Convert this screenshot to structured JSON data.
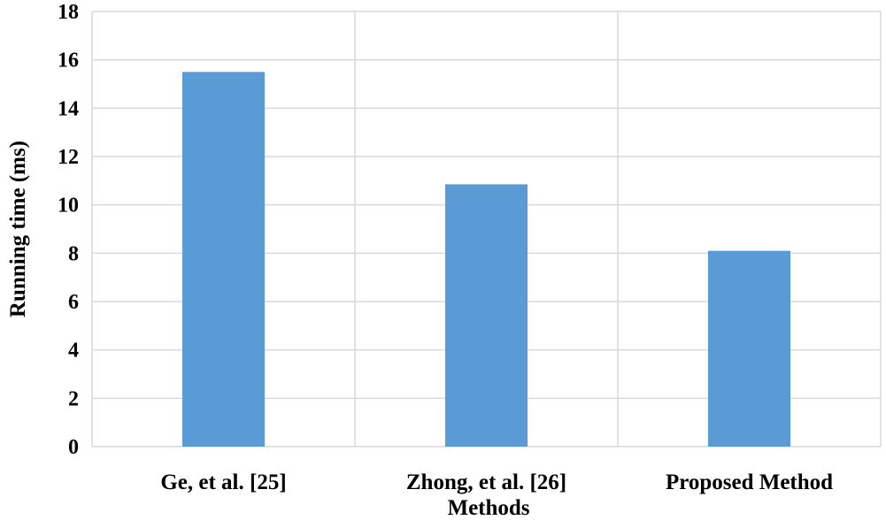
{
  "chart_data": {
    "type": "bar",
    "title": "",
    "xlabel": "Methods",
    "ylabel": "Running time (ms)",
    "categories": [
      "Ge, et al. [25]",
      "Zhong, et al. [26]",
      "Proposed Method"
    ],
    "values": [
      15.5,
      10.85,
      8.1
    ],
    "ylim": [
      0,
      18
    ],
    "yticks": [
      "0",
      "2",
      "4",
      "6",
      "8",
      "10",
      "12",
      "14",
      "16",
      "18"
    ],
    "grid": true,
    "bar_color": "#5b9bd5",
    "grid_color": "#d9d9d9"
  }
}
